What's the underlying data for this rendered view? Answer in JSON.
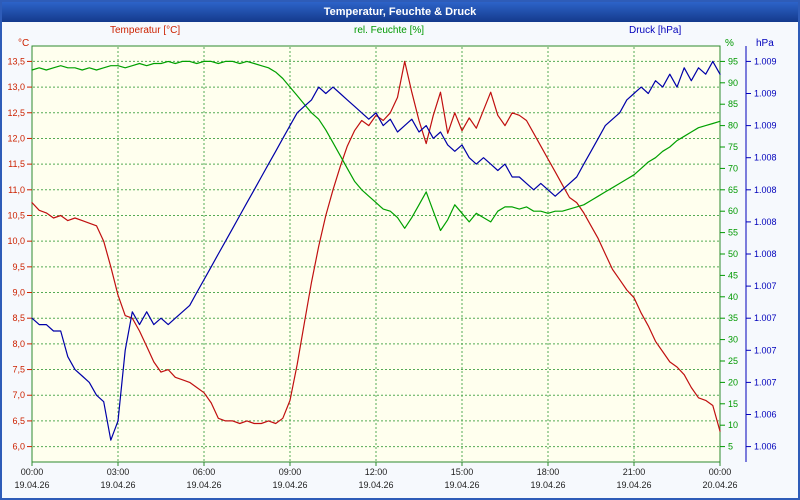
{
  "window": {
    "title": "Temperatur, Feuchte & Druck"
  },
  "chart_data": {
    "type": "line",
    "title": "Temperatur, Feuchte & Druck",
    "plot_bg": "#ffffee",
    "grid_color": "#55ab55",
    "grid_border": "#2d8a2d",
    "x_label_color": "#222222",
    "x_axis": {
      "tick_hours": [
        0,
        3,
        6,
        9,
        12,
        15,
        18,
        21,
        24
      ],
      "tick_labels": [
        "00:00",
        "03:00",
        "06:00",
        "09:00",
        "12:00",
        "15:00",
        "18:00",
        "21:00",
        "00:00"
      ],
      "date_labels": [
        "19.04.26",
        "19.04.26",
        "19.04.26",
        "19.04.26",
        "19.04.26",
        "19.04.26",
        "19.04.26",
        "19.04.26",
        "20.04.26"
      ]
    },
    "axes": {
      "temperature": {
        "label": "Temperatur [°C]",
        "unit": "°C",
        "color": "#cc2200",
        "tick_values": [
          13.5,
          13.0,
          12.5,
          12.0,
          11.5,
          11.0,
          10.5,
          10.0,
          9.5,
          9.0,
          8.5,
          8.0,
          7.5,
          7.0,
          6.5,
          6.0
        ],
        "tick_labels": [
          "13,5",
          "13,0",
          "12,5",
          "12,0",
          "11,5",
          "11,0",
          "10,5",
          "10,0",
          "9,5",
          "9,0",
          "8,5",
          "8,0",
          "7,5",
          "7,0",
          "6,5",
          "6,0"
        ],
        "plot_max": 13.8,
        "plot_min": 5.7
      },
      "humidity": {
        "label": "rel. Feuchte [%]",
        "unit": "%",
        "color": "#009900",
        "tick_values": [
          95,
          90,
          85,
          80,
          75,
          70,
          65,
          60,
          55,
          50,
          45,
          40,
          35,
          30,
          25,
          20,
          15,
          10,
          5
        ],
        "tick_labels": [
          "95",
          "90",
          "85",
          "80",
          "75",
          "70",
          "65",
          "60",
          "55",
          "50",
          "45",
          "40",
          "35",
          "30",
          "25",
          "20",
          "15",
          "10",
          "5"
        ],
        "plot_max": 98.6,
        "plot_min": 1.4
      },
      "pressure": {
        "label": "Druck [hPa]",
        "unit": "hPa",
        "color": "#0000bb",
        "tick_values": [
          1009.5,
          1009.25,
          1009.0,
          1008.75,
          1008.5,
          1008.25,
          1008.0,
          1007.75,
          1007.5,
          1007.25,
          1007.0,
          1006.75,
          1006.5
        ],
        "tick_labels": [
          "1.009",
          "1.009",
          "1.009",
          "1.008",
          "1.008",
          "1.008",
          "1.008",
          "1.007",
          "1.007",
          "1.007",
          "1.007",
          "1.006",
          "1.006"
        ],
        "plot_max": 1009.62,
        "plot_min": 1006.38
      }
    },
    "x_start_hour": 0,
    "x_step_hours": 0.25,
    "series": [
      {
        "name": "Temperatur",
        "axis": "temperature",
        "color": "#c01010",
        "data_name": "temperature-line",
        "values": [
          10.75,
          10.6,
          10.55,
          10.45,
          10.5,
          10.4,
          10.45,
          10.4,
          10.35,
          10.3,
          10.0,
          9.5,
          8.95,
          8.55,
          8.5,
          8.25,
          7.95,
          7.65,
          7.45,
          7.5,
          7.35,
          7.3,
          7.25,
          7.15,
          7.05,
          6.85,
          6.55,
          6.5,
          6.5,
          6.45,
          6.5,
          6.45,
          6.45,
          6.5,
          6.45,
          6.55,
          6.9,
          7.6,
          8.4,
          9.2,
          9.9,
          10.5,
          11.0,
          11.45,
          11.85,
          12.15,
          12.35,
          12.25,
          12.45,
          12.35,
          12.5,
          12.8,
          13.5,
          12.9,
          12.35,
          11.9,
          12.45,
          12.9,
          12.1,
          12.5,
          12.15,
          12.4,
          12.2,
          12.55,
          12.9,
          12.45,
          12.25,
          12.5,
          12.45,
          12.35,
          12.1,
          11.85,
          11.6,
          11.35,
          11.1,
          10.85,
          10.75,
          10.55,
          10.3,
          10.05,
          9.75,
          9.45,
          9.25,
          9.05,
          8.9,
          8.6,
          8.35,
          8.05,
          7.85,
          7.65,
          7.55,
          7.4,
          7.15,
          6.95,
          6.9,
          6.8,
          6.3
        ]
      },
      {
        "name": "rel. Feuchte",
        "axis": "humidity",
        "color": "#00a000",
        "data_name": "humidity-line",
        "values": [
          93,
          93.5,
          93,
          93.5,
          94,
          93.5,
          93.5,
          93,
          93.5,
          93,
          93.5,
          94,
          94,
          93.5,
          94,
          94.5,
          94,
          94.5,
          94.5,
          95,
          94.5,
          95,
          95,
          94.5,
          95,
          95,
          94.5,
          95,
          95,
          94.5,
          95,
          94.5,
          94,
          93.5,
          92.5,
          91,
          89,
          87,
          85,
          83,
          81.5,
          79,
          76,
          73,
          70,
          67,
          65,
          63.5,
          62,
          60.5,
          60,
          58.5,
          56,
          58.5,
          61.5,
          64.5,
          60,
          55.5,
          58,
          61.5,
          59.5,
          57.5,
          59.5,
          58.5,
          57.5,
          60,
          61,
          61,
          60.5,
          61,
          60,
          60,
          59.5,
          60,
          60,
          60.5,
          61,
          61.5,
          62.5,
          63.5,
          64.5,
          65.5,
          66.5,
          67.5,
          68.5,
          70,
          71.5,
          72.5,
          74,
          75,
          76.5,
          77.5,
          78.5,
          79.5,
          80,
          80.5,
          81
        ]
      },
      {
        "name": "Druck",
        "axis": "pressure",
        "color": "#0000a8",
        "data_name": "pressure-line",
        "values": [
          1007.5,
          1007.45,
          1007.45,
          1007.4,
          1007.4,
          1007.2,
          1007.1,
          1007.05,
          1007.0,
          1006.9,
          1006.85,
          1006.55,
          1006.7,
          1007.25,
          1007.55,
          1007.45,
          1007.55,
          1007.45,
          1007.5,
          1007.45,
          1007.5,
          1007.55,
          1007.6,
          1007.7,
          1007.8,
          1007.9,
          1008.0,
          1008.1,
          1008.2,
          1008.3,
          1008.4,
          1008.5,
          1008.6,
          1008.7,
          1008.8,
          1008.9,
          1009.0,
          1009.1,
          1009.15,
          1009.2,
          1009.3,
          1009.25,
          1009.3,
          1009.25,
          1009.2,
          1009.15,
          1009.1,
          1009.05,
          1009.1,
          1009.0,
          1009.05,
          1008.95,
          1009.0,
          1009.05,
          1008.95,
          1009.0,
          1008.9,
          1008.95,
          1008.85,
          1008.8,
          1008.85,
          1008.75,
          1008.7,
          1008.75,
          1008.7,
          1008.65,
          1008.7,
          1008.6,
          1008.6,
          1008.55,
          1008.5,
          1008.55,
          1008.5,
          1008.45,
          1008.5,
          1008.55,
          1008.6,
          1008.7,
          1008.8,
          1008.9,
          1009.0,
          1009.05,
          1009.1,
          1009.2,
          1009.25,
          1009.3,
          1009.25,
          1009.35,
          1009.3,
          1009.4,
          1009.3,
          1009.45,
          1009.35,
          1009.45,
          1009.4,
          1009.5,
          1009.4
        ]
      }
    ]
  }
}
